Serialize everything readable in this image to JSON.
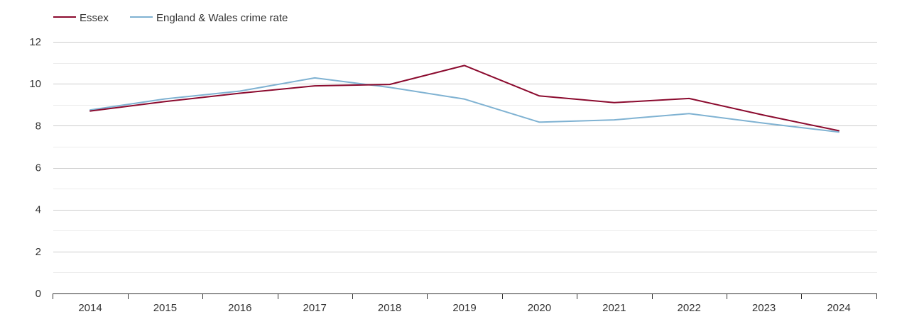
{
  "chart_data": {
    "type": "line",
    "title": "",
    "xlabel": "",
    "ylabel": "",
    "categories": [
      "2014",
      "2015",
      "2016",
      "2017",
      "2018",
      "2019",
      "2020",
      "2021",
      "2022",
      "2023",
      "2024"
    ],
    "ylim": [
      0,
      12
    ],
    "yticks": [
      0,
      2,
      4,
      6,
      8,
      10,
      12
    ],
    "grid": true,
    "legend_position": "top-left",
    "series": [
      {
        "name": "Essex",
        "color": "#8b0a2e",
        "values": [
          8.7,
          9.15,
          9.55,
          9.9,
          9.97,
          10.87,
          9.42,
          9.1,
          9.3,
          8.5,
          7.76
        ]
      },
      {
        "name": "England & Wales crime rate",
        "color": "#7fb2d2",
        "values": [
          8.75,
          9.28,
          9.65,
          10.28,
          9.83,
          9.27,
          8.17,
          8.28,
          8.58,
          8.12,
          7.7
        ]
      }
    ]
  }
}
